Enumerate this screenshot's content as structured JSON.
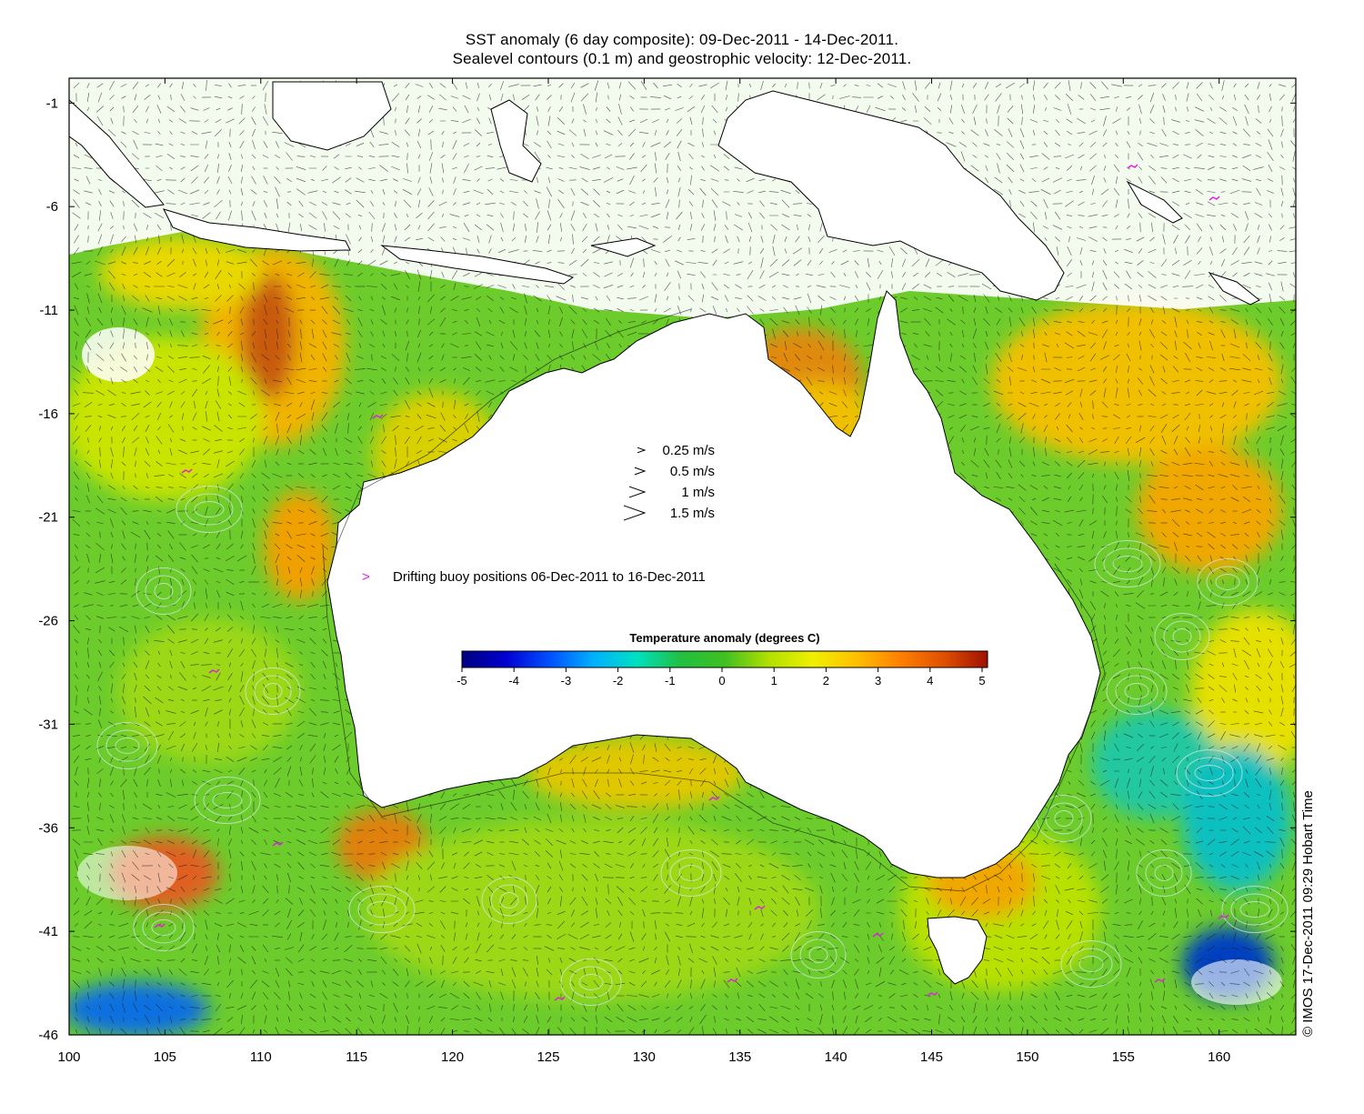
{
  "title": {
    "line1": "SST anomaly (6 day composite): 09-Dec-2011 - 14-Dec-2011.",
    "line2": "Sealevel contours (0.1 m) and geostrophic velocity: 12-Dec-2011."
  },
  "axes": {
    "lon_ticks": [
      "100",
      "105",
      "110",
      "115",
      "120",
      "125",
      "130",
      "135",
      "140",
      "145",
      "150",
      "155",
      "160"
    ],
    "lon_values": [
      100,
      105,
      110,
      115,
      120,
      125,
      130,
      135,
      140,
      145,
      150,
      155,
      160
    ],
    "lat_ticks": [
      "-1",
      "-6",
      "-11",
      "-16",
      "-21",
      "-26",
      "-31",
      "-36",
      "-41",
      "-46"
    ],
    "lat_values": [
      -1,
      -6,
      -11,
      -16,
      -21,
      -26,
      -31,
      -36,
      -41,
      -46
    ],
    "lon_range": [
      100,
      164
    ],
    "lat_range": [
      -46,
      0.2
    ]
  },
  "velocity_legend": [
    {
      "label": "0.25 m/s",
      "speed": 0.25
    },
    {
      "label": "0.5 m/s",
      "speed": 0.5
    },
    {
      "label": "1 m/s",
      "speed": 1
    },
    {
      "label": "1.5 m/s",
      "speed": 1.5
    }
  ],
  "buoy_legend": {
    "label": "Drifting buoy positions 06-Dec-2011 to 16-Dec-2011",
    "color": "#e020e0"
  },
  "colorbar": {
    "title": "Temperature anomaly (degrees C)",
    "ticks": [
      "-5",
      "-4",
      "-3",
      "-2",
      "-1",
      "0",
      "1",
      "2",
      "3",
      "4",
      "5"
    ],
    "range": [
      -5,
      5
    ],
    "colors": [
      "#00007f",
      "#0000d0",
      "#0050ff",
      "#00b0ff",
      "#00e0c0",
      "#20c040",
      "#40c020",
      "#b0e000",
      "#f0f000",
      "#ffc000",
      "#ff8000",
      "#e05000",
      "#a01000"
    ]
  },
  "credit": "© IMOS 17-Dec-2011 09:29 Hobart Time"
}
